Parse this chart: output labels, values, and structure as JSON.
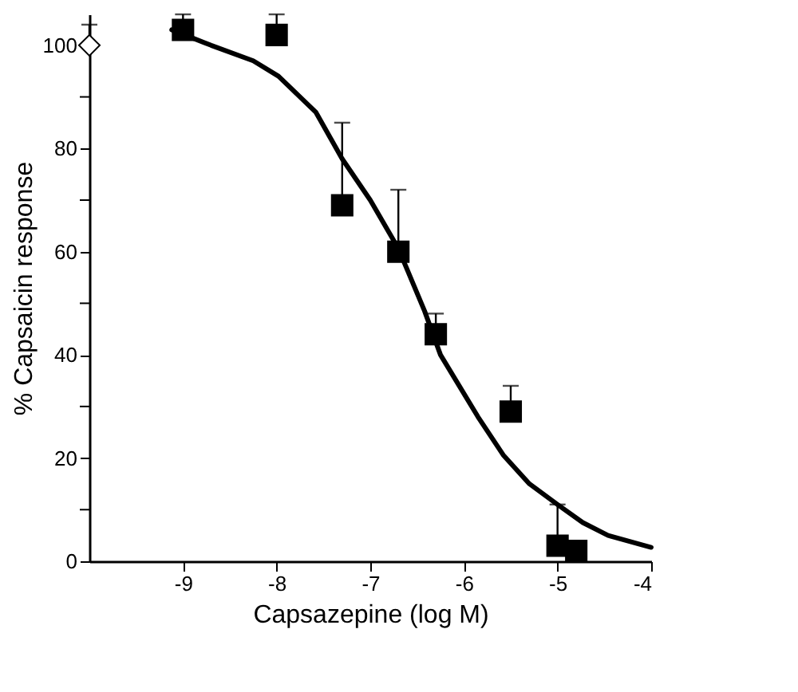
{
  "chart_data": {
    "type": "scatter",
    "xlabel": "Capsazepine (log M)",
    "ylabel": "% Capsaicin response",
    "xlim": [
      -10,
      -4
    ],
    "xticks": [
      -9,
      -8,
      -7,
      -6,
      -5,
      -4
    ],
    "ylim": [
      0,
      106
    ],
    "yticks": [
      0,
      {
        "value": 10,
        "label": null
      },
      20,
      {
        "value": 30,
        "label": null
      },
      40,
      {
        "value": 50,
        "label": null
      },
      60,
      {
        "value": 70,
        "label": null
      },
      80,
      {
        "value": 90,
        "label": null
      },
      100
    ],
    "grid": false,
    "series": [
      {
        "type": "line",
        "color": "#000000",
        "marker": "none",
        "line_style": "solid",
        "x": [
          -9.12,
          -8.7,
          -8.25,
          -7.98,
          -7.58,
          -7.3,
          -7.0,
          -6.7,
          -6.42,
          -6.25,
          -5.85,
          -5.58,
          -5.3,
          -5.0,
          -4.73,
          -4.46,
          -4.0
        ],
        "values": [
          103,
          100,
          97,
          94,
          87,
          78,
          70,
          60.6,
          48.5,
          40,
          28,
          20.6,
          15,
          11,
          7.5,
          5,
          2.7
        ]
      },
      {
        "type": "scatter",
        "color": "#000000",
        "marker": "square",
        "x": [
          -9,
          -8,
          -7.3,
          -6.7,
          -6.3,
          -5.5,
          -5,
          -4.8
        ],
        "values": [
          103,
          102,
          69,
          60,
          44,
          29,
          3,
          2
        ],
        "errors": [
          [
            103,
            106
          ],
          [
            102,
            106
          ],
          [
            69,
            85
          ],
          [
            60,
            72
          ],
          [
            44,
            48
          ],
          [
            29,
            34
          ],
          [
            3,
            11
          ],
          null
        ]
      },
      {
        "type": "scatter",
        "color": "#ffffff",
        "marker": "diamond",
        "x": [
          -10
        ],
        "values": [
          100
        ],
        "errors": [
          [
            100,
            104
          ]
        ]
      }
    ]
  }
}
